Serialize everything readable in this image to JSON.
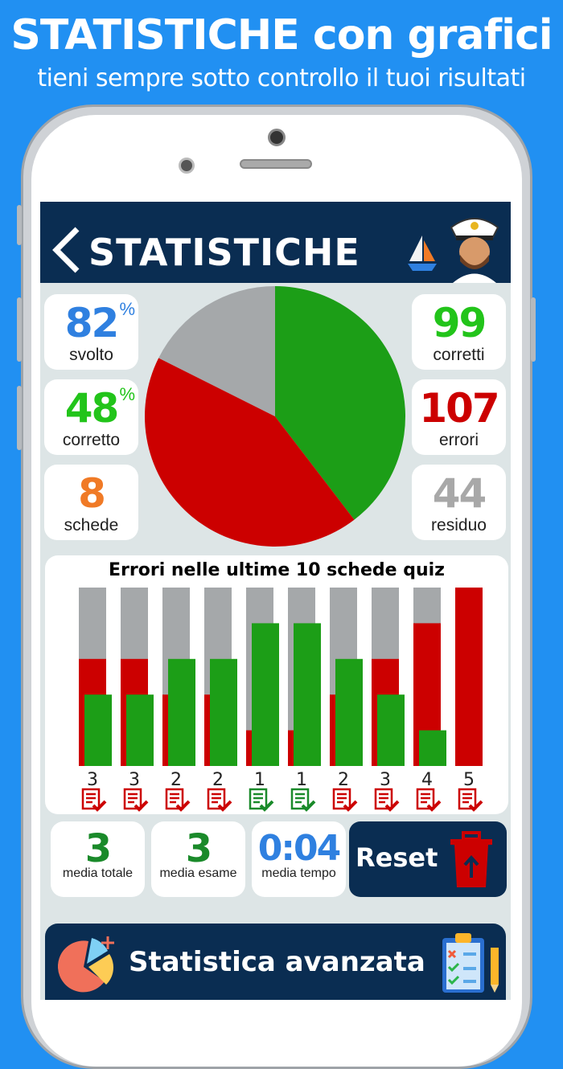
{
  "promo": {
    "title": "STATISTICHE con grafici",
    "subtitle": "tieni sempre sotto controllo il tuoi risultati"
  },
  "header": {
    "title": "STATISTICHE",
    "back_icon": "chevron-left-icon"
  },
  "stats_left": [
    {
      "value": "82",
      "suffix": "%",
      "label": "svolto",
      "color": "#2f80e0"
    },
    {
      "value": "48",
      "suffix": "%",
      "label": "corretto",
      "color": "#22c41a"
    },
    {
      "value": "8",
      "suffix": "",
      "label": "schede",
      "color": "#f07a26"
    }
  ],
  "stats_right": [
    {
      "value": "99",
      "label": "corretti",
      "color": "#22c41a"
    },
    {
      "value": "107",
      "label": "errori",
      "color": "#cc0000"
    },
    {
      "value": "44",
      "label": "residuo",
      "color": "#a8a8a8"
    }
  ],
  "colors": {
    "correct": "#1c9e17",
    "error": "#cc0000",
    "remaining": "#a5a8aa",
    "navy": "#0a2d52"
  },
  "chart_data": [
    {
      "type": "pie",
      "slices": [
        {
          "label": "corretti",
          "value": 99,
          "color": "#1c9e17"
        },
        {
          "label": "errori",
          "value": 107,
          "color": "#cc0000"
        },
        {
          "label": "residuo",
          "value": 44,
          "color": "#a5a8aa"
        }
      ]
    },
    {
      "type": "bar",
      "title": "Errori nelle ultime 10 schede quiz",
      "max": 5,
      "categories": [
        "3",
        "3",
        "2",
        "2",
        "1",
        "1",
        "2",
        "3",
        "4",
        "5"
      ],
      "errors": [
        3,
        3,
        2,
        2,
        1,
        1,
        2,
        3,
        4,
        5
      ],
      "correct": [
        2,
        2,
        3,
        3,
        4,
        4,
        3,
        2,
        1,
        0
      ],
      "passed": [
        false,
        false,
        false,
        false,
        true,
        true,
        false,
        false,
        false,
        false
      ]
    }
  ],
  "averages": [
    {
      "value": "3",
      "label": "media totale",
      "color": "#1a8a2a"
    },
    {
      "value": "3",
      "label": "media esame",
      "color": "#1a8a2a"
    },
    {
      "value": "0:04",
      "label": "media tempo",
      "color": "#2f80e0"
    }
  ],
  "reset": {
    "label": "Reset",
    "icon": "trash-icon"
  },
  "advanced": {
    "label": "Statistica avanzata"
  }
}
